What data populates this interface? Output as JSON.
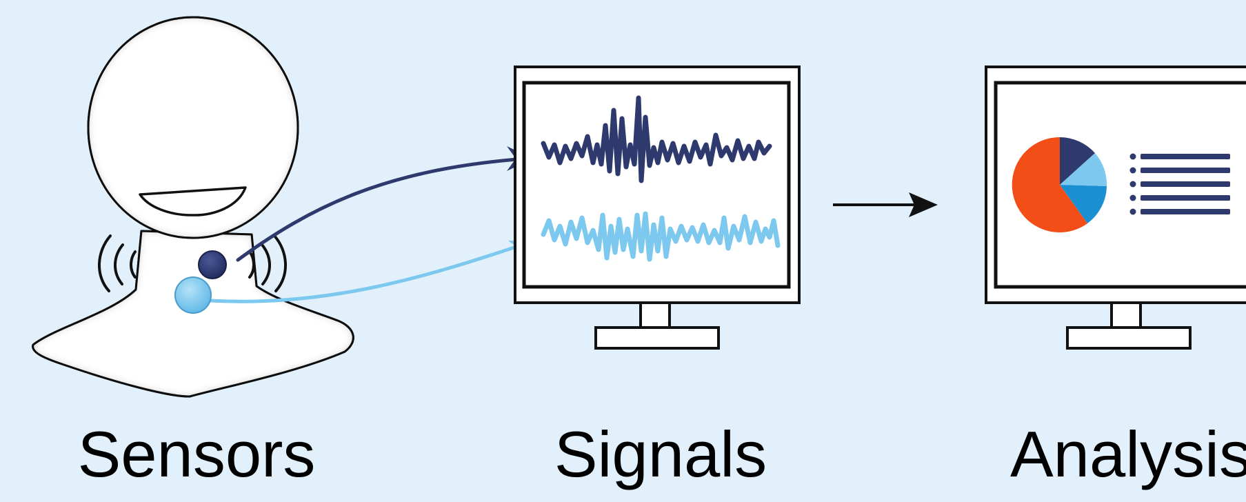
{
  "stages": [
    {
      "label": "Sensors"
    },
    {
      "label": "Signals"
    },
    {
      "label": "Analysis"
    }
  ],
  "colors": {
    "background": "#e1f0fa",
    "dark_sensor": "#2e3a6e",
    "light_sensor": "#7cc8ee",
    "pie_orange": "#f34e17",
    "pie_navy": "#2e3a6e",
    "pie_light_blue": "#7cc8ee",
    "pie_mid_blue": "#1a8fd1"
  },
  "icons": [
    "head-figure-icon",
    "sound-wave-icon",
    "signal-monitor-icon",
    "analysis-monitor-icon",
    "pie-chart-icon",
    "list-icon"
  ]
}
